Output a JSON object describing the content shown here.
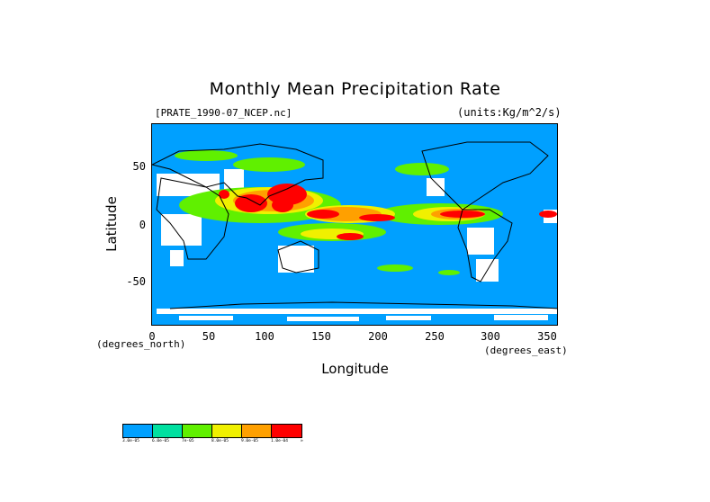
{
  "chart_data": {
    "type": "heatmap",
    "title": "Monthly Mean Precipitation Rate",
    "source_file": "[PRATE_1990-07_NCEP.nc]",
    "units": "(units:Kg/m^2/s)",
    "xlabel": "Longitude",
    "ylabel": "Latitude",
    "x_unit_note": "(degrees_east)",
    "y_unit_note": "(degrees_north)",
    "xlim": [
      0,
      360
    ],
    "ylim": [
      -88,
      88
    ],
    "x_ticks": [
      "0",
      "50",
      "100",
      "150",
      "200",
      "250",
      "300",
      "350"
    ],
    "y_ticks": [
      "50",
      "0",
      "-50"
    ],
    "colorbar": {
      "colors": [
        "#00a0ff",
        "#00e0a0",
        "#60f000",
        "#f0f000",
        "#ffa000",
        "#ff0000"
      ],
      "labels": [
        "3.0e-05",
        "6.0e-05",
        "7e-05",
        "8.0e-05",
        "9.0e-05",
        "1.0e-04",
        "∞"
      ]
    },
    "features": [
      "ITCZ heavy rainfall band near 10N",
      "Indian / Asian monsoon maximum 70-140E",
      "Central American maximum near 270-290E",
      "No-data (white) areas over dry land"
    ]
  }
}
